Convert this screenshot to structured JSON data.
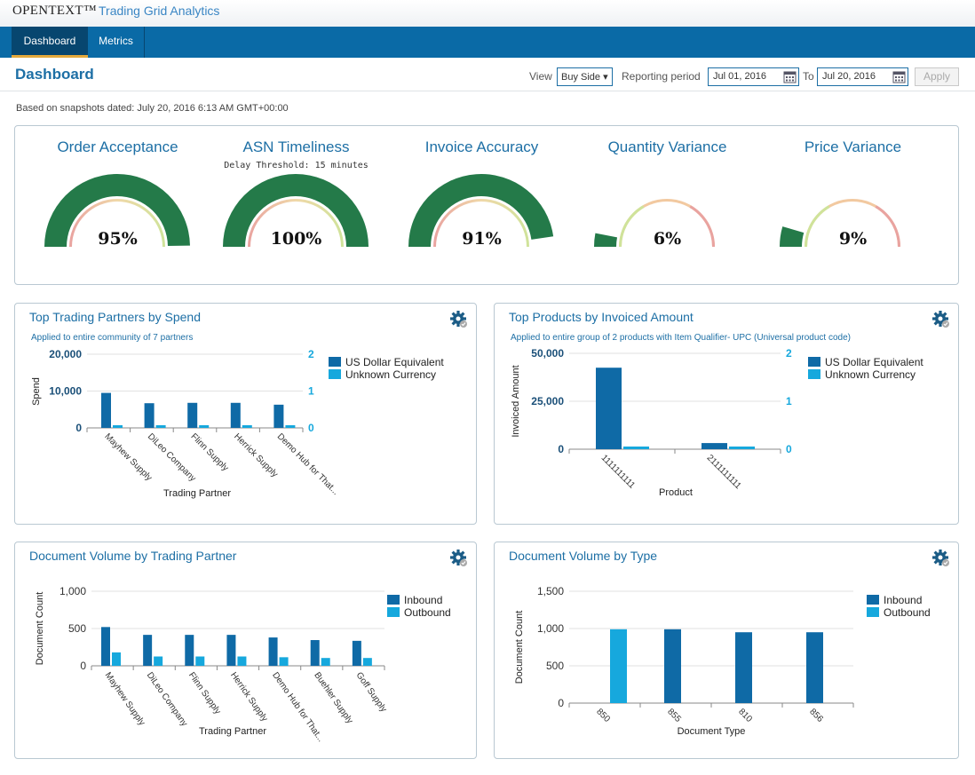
{
  "brand": {
    "name": "OPENTEXT™",
    "product": "Trading Grid Analytics"
  },
  "nav": {
    "tabs": [
      {
        "label": "Dashboard",
        "active": true
      },
      {
        "label": "Metrics",
        "active": false
      }
    ]
  },
  "header": {
    "title": "Dashboard",
    "view_label": "View",
    "view_value": "Buy Side ▾",
    "reporting_label": "Reporting period",
    "start_date": "Jul 01, 2016",
    "to_label": "To",
    "end_date": "Jul 20, 2016",
    "apply_label": "Apply"
  },
  "snapshot": "Based on snapshots dated: July 20, 2016 6:13 AM GMT+00:00",
  "kpis": [
    {
      "title": "Order Acceptance",
      "subtitle": "",
      "value_label": "95%",
      "value": 0.95
    },
    {
      "title": "ASN Timeliness",
      "subtitle": "Delay Threshold: 15 minutes",
      "value_label": "100%",
      "value": 1.0
    },
    {
      "title": "Invoice Accuracy",
      "subtitle": "",
      "value_label": "91%",
      "value": 0.91
    },
    {
      "title": "Quantity Variance",
      "subtitle": "",
      "value_label": "6%",
      "value": 0.06
    },
    {
      "title": "Price Variance",
      "subtitle": "",
      "value_label": "9%",
      "value": 0.09
    }
  ],
  "colors": {
    "primary": "#0a6aa6",
    "series_dark": "#0f6aa6",
    "series_light": "#16a8dd",
    "gauge_fill": "#247a49"
  },
  "panels": [
    {
      "title": "Top Trading Partners by Spend",
      "subtitle": "Applied to entire community of  7 partners",
      "legend": [
        "US Dollar Equivalent",
        "Unknown Currency"
      ]
    },
    {
      "title": "Top Products by Invoiced Amount",
      "subtitle": "Applied to entire group of 2 products with Item Qualifier- UPC (Universal product code)",
      "legend": [
        "US Dollar Equivalent",
        "Unknown Currency"
      ]
    },
    {
      "title": "Document Volume by Trading Partner",
      "subtitle": "",
      "legend": [
        "Inbound",
        "Outbound"
      ]
    },
    {
      "title": "Document Volume by Type",
      "subtitle": "",
      "legend": [
        "Inbound",
        "Outbound"
      ]
    }
  ],
  "chart_data": [
    {
      "type": "bar",
      "categories": [
        "Mayhew Supply",
        "DiLeo Company",
        "Flinn Supply",
        "Herrick Supply",
        "Demo Hub for That..."
      ],
      "series": [
        {
          "name": "US Dollar Equivalent",
          "values": [
            9500,
            6700,
            6800,
            6800,
            6300
          ],
          "axis": "left"
        },
        {
          "name": "Unknown Currency",
          "values": [
            0,
            0,
            0,
            0,
            0
          ],
          "axis": "right"
        }
      ],
      "xlabel": "Trading Partner",
      "ylabel": "Spend",
      "ylim": [
        0,
        20000
      ],
      "yticks": [
        "0",
        "10,000",
        "20,000"
      ],
      "y2lim": [
        0,
        2
      ],
      "y2ticks": [
        "0",
        "1",
        "2"
      ]
    },
    {
      "type": "bar",
      "categories": [
        "1111111111",
        "2111111111"
      ],
      "series": [
        {
          "name": "US Dollar Equivalent",
          "values": [
            42500,
            3200
          ],
          "axis": "left"
        },
        {
          "name": "Unknown Currency",
          "values": [
            0,
            0
          ],
          "axis": "right"
        }
      ],
      "xlabel": "Product",
      "ylabel": "Invoiced Amount",
      "ylim": [
        0,
        50000
      ],
      "yticks": [
        "0",
        "25,000",
        "50,000"
      ],
      "y2lim": [
        0,
        2
      ],
      "y2ticks": [
        "0",
        "1",
        "2"
      ]
    },
    {
      "type": "bar",
      "categories": [
        "Mayhew Supply",
        "DiLeo Company",
        "Flinn Supply",
        "Herrick Supply",
        "Demo Hub for That...",
        "Buehler Supply",
        "Goff Supply"
      ],
      "series": [
        {
          "name": "Inbound",
          "values": [
            520,
            415,
            415,
            415,
            380,
            345,
            335
          ]
        },
        {
          "name": "Outbound",
          "values": [
            180,
            125,
            125,
            125,
            115,
            105,
            105
          ]
        }
      ],
      "xlabel": "Trading Partner",
      "ylabel": "Document Count",
      "ylim": [
        0,
        1000
      ],
      "yticks": [
        "0",
        "500",
        "1,000"
      ]
    },
    {
      "type": "bar",
      "categories": [
        "850",
        "855",
        "810",
        "856"
      ],
      "series": [
        {
          "name": "Inbound",
          "values": [
            0,
            990,
            950,
            950
          ]
        },
        {
          "name": "Outbound",
          "values": [
            990,
            0,
            0,
            0
          ]
        }
      ],
      "xlabel": "Document Type",
      "ylabel": "Document Count",
      "ylim": [
        0,
        1500
      ],
      "yticks": [
        "0",
        "500",
        "1,000",
        "1,500"
      ]
    }
  ]
}
